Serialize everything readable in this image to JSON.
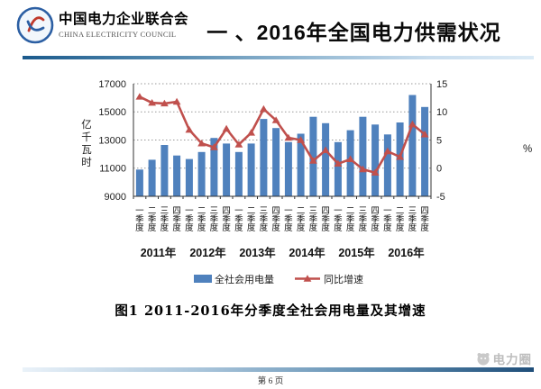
{
  "header": {
    "logo_org_cn": "中国电力企业联合会",
    "logo_org_en": "CHINA ELECTRICITY COUNCIL",
    "title": "一 、2016年全国电力供需状况"
  },
  "chart_data": {
    "type": "bar+line",
    "quarters": [
      "一季度",
      "二季度",
      "三季度",
      "四季度"
    ],
    "years": [
      "2011年",
      "2012年",
      "2013年",
      "2014年",
      "2015年",
      "2016年"
    ],
    "series": [
      {
        "name": "全社会用电量",
        "type": "bar",
        "axis": "left",
        "color": "#4f81bd",
        "values": [
          10900,
          11600,
          12650,
          11900,
          11650,
          12150,
          13150,
          12750,
          12150,
          12750,
          14500,
          13850,
          12850,
          13450,
          14650,
          14200,
          12850,
          13700,
          14650,
          14100,
          13400,
          14250,
          16200,
          15350
        ]
      },
      {
        "name": "同比增速",
        "type": "line",
        "axis": "right",
        "color": "#c0504d",
        "values": [
          12.7,
          11.6,
          11.5,
          11.8,
          6.8,
          4.4,
          3.7,
          7.0,
          4.2,
          6.3,
          10.5,
          8.5,
          5.4,
          5.0,
          1.3,
          3.2,
          0.8,
          1.6,
          -0.2,
          -0.8,
          3.0,
          2.0,
          7.8,
          6.0
        ]
      }
    ],
    "left_axis": {
      "label": "亿千瓦时",
      "min": 9000,
      "max": 17000,
      "ticks": [
        9000,
        11000,
        13000,
        15000,
        17000
      ]
    },
    "right_axis": {
      "label": "%",
      "min": -5,
      "max": 15,
      "ticks": [
        -5,
        0,
        5,
        10,
        15
      ]
    },
    "grid": "horizontal-dotted",
    "legend_position": "bottom"
  },
  "caption": "图1   2011-2016年分季度全社会用电量及其增速",
  "footer": {
    "page_label": "第 6 页",
    "watermark_text": "电力圈"
  },
  "colors": {
    "bar": "#4f81bd",
    "line": "#c0504d",
    "band_dark": "#1b5a8c",
    "band_light": "#dcebf6"
  }
}
